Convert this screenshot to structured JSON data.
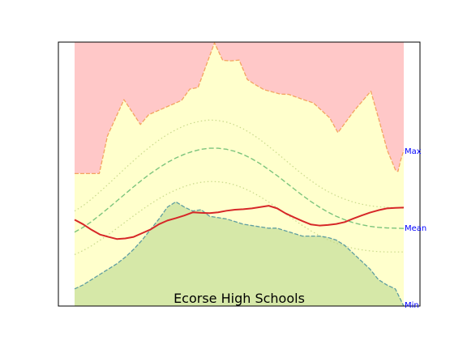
{
  "chart_data": {
    "type": "area",
    "title": "Ecorse High Schools",
    "xlabel": "",
    "ylabel": "",
    "grid": false,
    "legend": "none",
    "x_count": 40,
    "ylim": [
      0,
      1
    ],
    "right_labels": [
      {
        "text": "Max",
        "value": 0.589
      },
      {
        "text": "Mean",
        "value": 0.297
      },
      {
        "text": "Min",
        "value": 0.0
      }
    ],
    "series": [
      {
        "name": "",
        "role": "max-envelope",
        "values": [
          0.502,
          0.502,
          0.502,
          0.502,
          0.645,
          0.782,
          0.688,
          0.725,
          0.752,
          0.779,
          0.822,
          0.828,
          0.997,
          0.931,
          0.929,
          0.932,
          0.858,
          0.838,
          0.82,
          0.803,
          0.802,
          0.78,
          0.77,
          0.713,
          0.657,
          0.741,
          0.814,
          0.704,
          0.59,
          0.515,
          0.51,
          0.55,
          0.59
        ],
        "x_index": [
          0,
          1,
          2,
          3,
          4,
          6,
          8,
          9,
          11,
          13,
          14,
          15,
          17,
          18,
          19,
          20,
          21,
          22,
          23,
          25,
          26,
          28,
          29,
          31,
          32,
          34,
          36,
          37,
          38,
          39,
          39.3,
          39.6,
          40
        ]
      },
      {
        "name": "",
        "role": "upper-dotted",
        "values": [
          0.36,
          0.38,
          0.405,
          0.433,
          0.462,
          0.492,
          0.522,
          0.551,
          0.579,
          0.605,
          0.629,
          0.65,
          0.668,
          0.683,
          0.694,
          0.701,
          0.705,
          0.703,
          0.697,
          0.686,
          0.671,
          0.652,
          0.63,
          0.605,
          0.579,
          0.552,
          0.525,
          0.499,
          0.475,
          0.453,
          0.434,
          0.418,
          0.405,
          0.394,
          0.386,
          0.38,
          0.376,
          0.374,
          0.372,
          0.371
        ]
      },
      {
        "name": "",
        "role": "upper-dashed",
        "values": [
          0.28,
          0.298,
          0.32,
          0.345,
          0.371,
          0.398,
          0.425,
          0.452,
          0.478,
          0.502,
          0.524,
          0.544,
          0.561,
          0.575,
          0.586,
          0.594,
          0.598,
          0.598,
          0.594,
          0.586,
          0.574,
          0.558,
          0.539,
          0.517,
          0.494,
          0.469,
          0.444,
          0.419,
          0.396,
          0.375,
          0.356,
          0.34,
          0.327,
          0.316,
          0.308,
          0.302,
          0.298,
          0.296,
          0.295,
          0.294
        ]
      },
      {
        "name": "",
        "role": "lower-dotted",
        "values": [
          0.195,
          0.21,
          0.228,
          0.249,
          0.271,
          0.294,
          0.318,
          0.342,
          0.365,
          0.387,
          0.407,
          0.425,
          0.44,
          0.453,
          0.463,
          0.469,
          0.472,
          0.471,
          0.467,
          0.459,
          0.447,
          0.432,
          0.414,
          0.394,
          0.372,
          0.35,
          0.327,
          0.305,
          0.285,
          0.267,
          0.251,
          0.238,
          0.227,
          0.219,
          0.213,
          0.209,
          0.206,
          0.205,
          0.205,
          0.205
        ]
      },
      {
        "name": "",
        "role": "min-envelope",
        "values": [
          0.065,
          0.08,
          0.1,
          0.12,
          0.14,
          0.16,
          0.185,
          0.215,
          0.25,
          0.29,
          0.33,
          0.375,
          0.395,
          0.375,
          0.36,
          0.365,
          0.34,
          0.335,
          0.33,
          0.32,
          0.31,
          0.305,
          0.3,
          0.295,
          0.295,
          0.285,
          0.275,
          0.265,
          0.265,
          0.265,
          0.26,
          0.25,
          0.23,
          0.2,
          0.17,
          0.14,
          0.1,
          0.08,
          0.065,
          0.0
        ]
      },
      {
        "name": "",
        "role": "school-line",
        "color": "#d62728",
        "values": [
          0.327,
          0.31,
          0.289,
          0.271,
          0.262,
          0.254,
          0.256,
          0.262,
          0.276,
          0.29,
          0.31,
          0.324,
          0.333,
          0.343,
          0.355,
          0.353,
          0.352,
          0.355,
          0.361,
          0.365,
          0.367,
          0.37,
          0.375,
          0.38,
          0.37,
          0.351,
          0.336,
          0.322,
          0.309,
          0.305,
          0.307,
          0.311,
          0.318,
          0.331,
          0.343,
          0.354,
          0.363,
          0.37,
          0.372,
          0.373
        ]
      }
    ],
    "colors": {
      "top_fill": "#ffc8c8",
      "middle_fill": "#ffffcc",
      "bottom_fill": "#d6e8a8",
      "max_line": "#f4a460",
      "min_line": "#5f9ea0",
      "dashed_line": "#7cc47c",
      "dotted_line": "#c8d88a",
      "right_label_color": "#0000ff"
    }
  }
}
